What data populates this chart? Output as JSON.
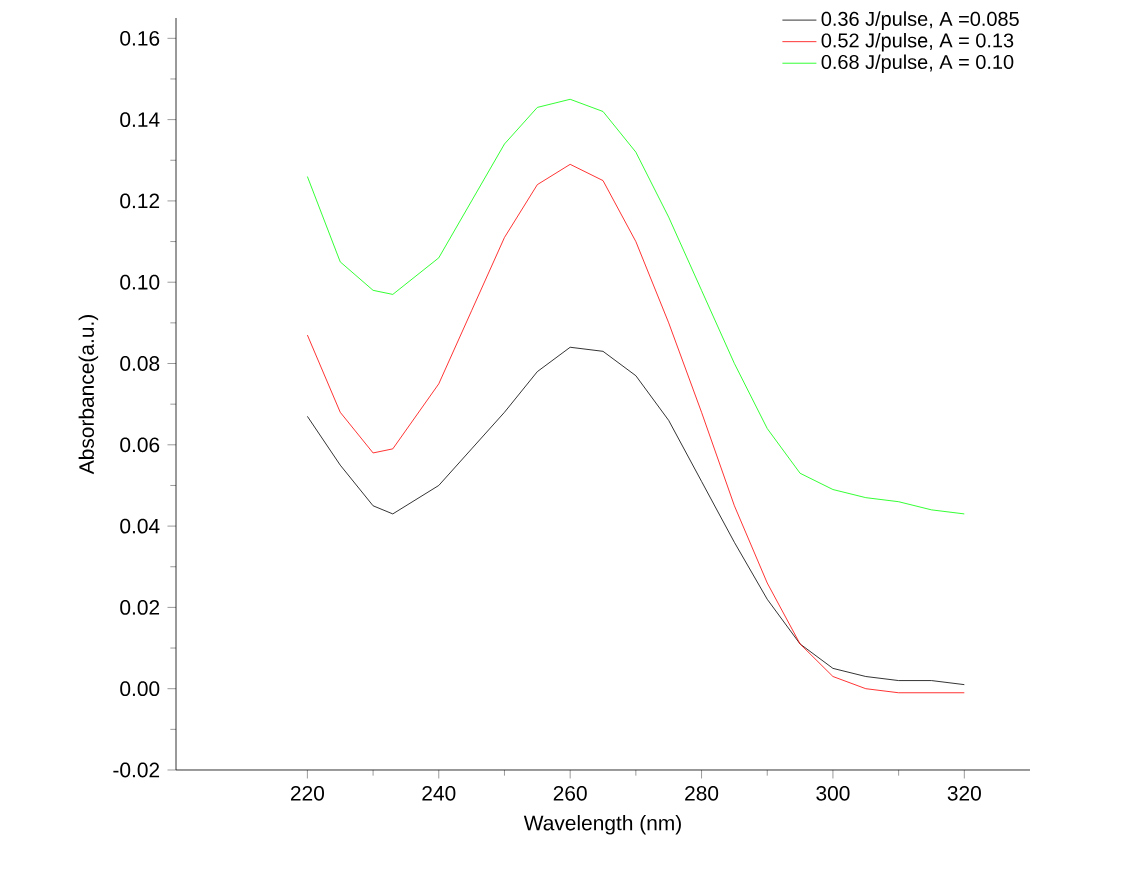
{
  "chart_data": {
    "type": "line",
    "xlabel": "Wavelength (nm)",
    "ylabel": "Absorbance(a.u.)",
    "xlim": [
      200,
      330
    ],
    "xticks": [
      220,
      240,
      260,
      280,
      300,
      320
    ],
    "ylim": [
      -0.02,
      0.165
    ],
    "yticks": [
      {
        "value": -0.02,
        "label": "-0.02"
      },
      {
        "value": 0.0,
        "label": "0.00"
      },
      {
        "value": 0.02,
        "label": "0.02"
      },
      {
        "value": 0.04,
        "label": "0.04"
      },
      {
        "value": 0.06,
        "label": "0.06"
      },
      {
        "value": 0.08,
        "label": "0.08"
      },
      {
        "value": 0.1,
        "label": "0.10"
      },
      {
        "value": 0.12,
        "label": "0.12"
      },
      {
        "value": 0.14,
        "label": "0.14"
      },
      {
        "value": 0.16,
        "label": "0.16"
      }
    ],
    "x": [
      220,
      225,
      230,
      233,
      240,
      245,
      250,
      255,
      260,
      265,
      270,
      275,
      280,
      285,
      290,
      295,
      300,
      305,
      310,
      315,
      320
    ],
    "legend": "top right",
    "grid": false,
    "marker": "none",
    "line_style": "solid",
    "series": [
      {
        "name": "0.36 J/pulse, A =0.085",
        "color": "#000000",
        "values": [
          0.067,
          0.055,
          0.045,
          0.043,
          0.05,
          0.059,
          0.068,
          0.078,
          0.084,
          0.083,
          0.077,
          0.066,
          0.051,
          0.036,
          0.022,
          0.011,
          0.005,
          0.003,
          0.002,
          0.002,
          0.001
        ]
      },
      {
        "name": "0.52 J/pulse, A = 0.13",
        "color": "#ff0000",
        "values": [
          0.087,
          0.068,
          0.058,
          0.059,
          0.075,
          0.093,
          0.111,
          0.124,
          0.129,
          0.125,
          0.11,
          0.09,
          0.068,
          0.045,
          0.026,
          0.011,
          0.003,
          0.0,
          -0.001,
          -0.001,
          -0.001
        ]
      },
      {
        "name": "0.68 J/pulse, A = 0.10",
        "color": "#00ff00",
        "values": [
          0.126,
          0.105,
          0.098,
          0.097,
          0.106,
          0.12,
          0.134,
          0.143,
          0.145,
          0.142,
          0.132,
          0.116,
          0.098,
          0.08,
          0.064,
          0.053,
          0.049,
          0.047,
          0.046,
          0.044,
          0.043
        ]
      }
    ]
  }
}
